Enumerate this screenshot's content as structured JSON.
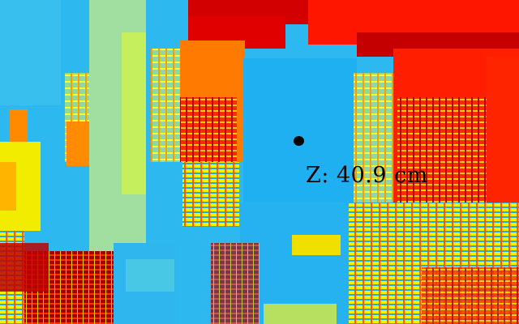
{
  "viewer": {
    "readout": "Z: 40.9 cm",
    "palette": [
      "#00008f",
      "#0000ff",
      "#0080ff",
      "#1fb3f3",
      "#3dc8ec",
      "#8cd9a5",
      "#c8ec59",
      "#ffff00",
      "#ffcc00",
      "#ff8000",
      "#ff1a00",
      "#d40000",
      "#8b0000"
    ]
  }
}
